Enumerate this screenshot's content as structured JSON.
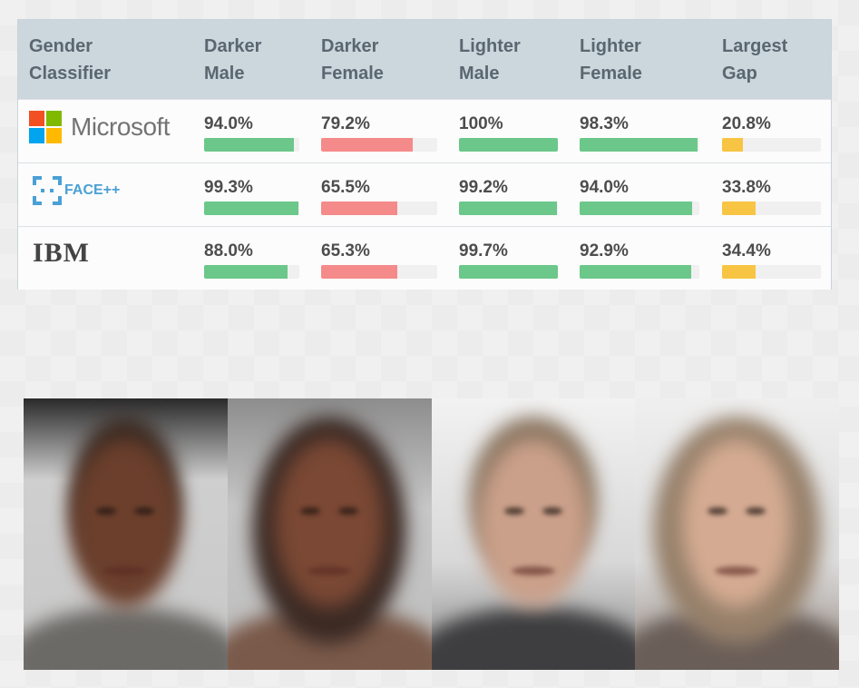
{
  "table": {
    "headers": [
      [
        "Gender",
        "Classifier"
      ],
      [
        "Darker",
        "Male"
      ],
      [
        "Darker",
        "Female"
      ],
      [
        "Lighter",
        "Male"
      ],
      [
        "Lighter",
        "Female"
      ],
      [
        "Largest",
        "Gap"
      ]
    ],
    "rows": [
      {
        "classifier": "Microsoft",
        "values": [
          "94.0%",
          "79.2%",
          "100%",
          "98.3%",
          "20.8%"
        ],
        "fractions": [
          0.94,
          0.792,
          1.0,
          0.983,
          0.208
        ]
      },
      {
        "classifier": "FACE++",
        "values": [
          "99.3%",
          "65.5%",
          "99.2%",
          "94.0%",
          "33.8%"
        ],
        "fractions": [
          0.993,
          0.655,
          0.992,
          0.94,
          0.338
        ]
      },
      {
        "classifier": "IBM",
        "values": [
          "88.0%",
          "65.3%",
          "99.7%",
          "92.9%",
          "34.4%"
        ],
        "fractions": [
          0.88,
          0.653,
          0.997,
          0.929,
          0.344
        ]
      }
    ],
    "colors": {
      "good": "#6cc78a",
      "bad": "#f58a8a",
      "gap": "#f8c443",
      "header_bg": "#ccd6dd"
    }
  },
  "faces": [
    "darker-male-average",
    "darker-female-average",
    "lighter-male-average",
    "lighter-female-average"
  ]
}
